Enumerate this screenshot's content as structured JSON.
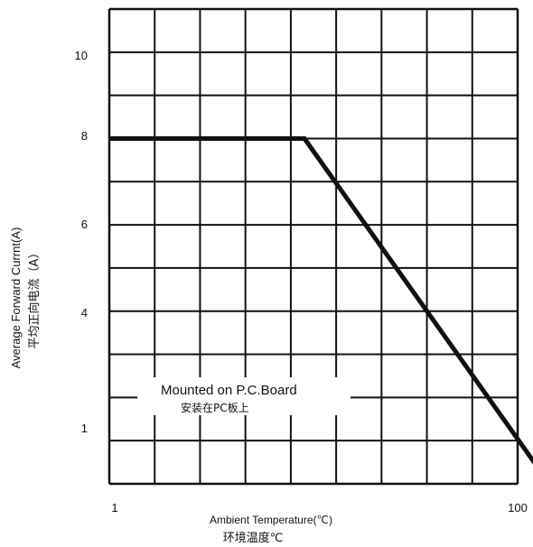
{
  "chart_data": {
    "type": "line",
    "title": "",
    "xlabel": "Ambient Temperature(℃)",
    "xlabel_cn": "环境温度℃",
    "ylabel": "Average Forward Currnt(A)",
    "ylabel_cn": "平均正向电流（A）",
    "x_tick_labels": [
      "1",
      "100"
    ],
    "y_tick_labels": [
      "10",
      "8",
      "6",
      "4",
      "1"
    ],
    "annotation": "Mounted on P.C.Board",
    "annotation_cn": "安装在PC板上",
    "grid": true,
    "x_grid_divisions": 9,
    "y_grid_divisions": 11,
    "series": [
      {
        "points": [
          [
            0,
            8
          ],
          [
            4.3,
            8
          ],
          [
            9.7,
            0
          ]
        ]
      }
    ],
    "line_color": "#111111"
  }
}
